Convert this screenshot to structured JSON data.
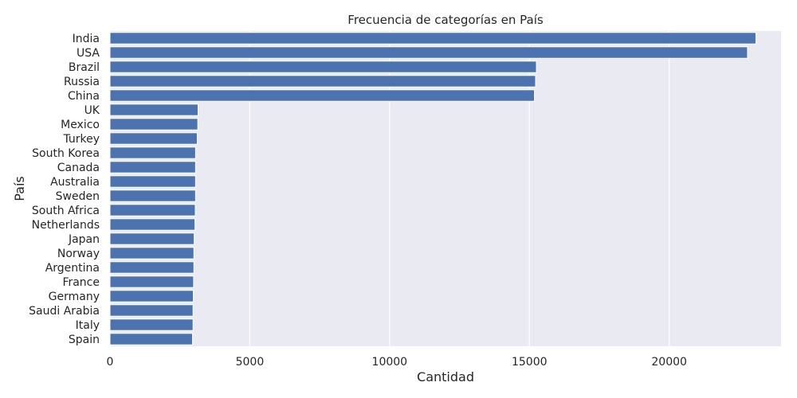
{
  "chart_data": {
    "type": "bar",
    "orientation": "horizontal",
    "title": "Frecuencia de categorías en País",
    "xlabel": "Cantidad",
    "ylabel": "País",
    "xlim": [
      0,
      24000
    ],
    "xticks": [
      0,
      5000,
      10000,
      15000,
      20000
    ],
    "grid": true,
    "categories": [
      "India",
      "USA",
      "Brazil",
      "Russia",
      "China",
      "UK",
      "Mexico",
      "Turkey",
      "South Korea",
      "Canada",
      "Australia",
      "Sweden",
      "South Africa",
      "Netherlands",
      "Japan",
      "Norway",
      "Argentina",
      "France",
      "Germany",
      "Saudi Arabia",
      "Italy",
      "Spain"
    ],
    "values": [
      23100,
      22800,
      15250,
      15220,
      15180,
      3150,
      3140,
      3120,
      3060,
      3060,
      3060,
      3060,
      3050,
      3040,
      3010,
      3000,
      3000,
      2990,
      2980,
      2970,
      2970,
      2950
    ],
    "colors": {
      "bar": "#4c72b0",
      "bar_edge": "#ffffff",
      "plot_background": "#eaeaf2",
      "grid": "#ffffff"
    }
  }
}
